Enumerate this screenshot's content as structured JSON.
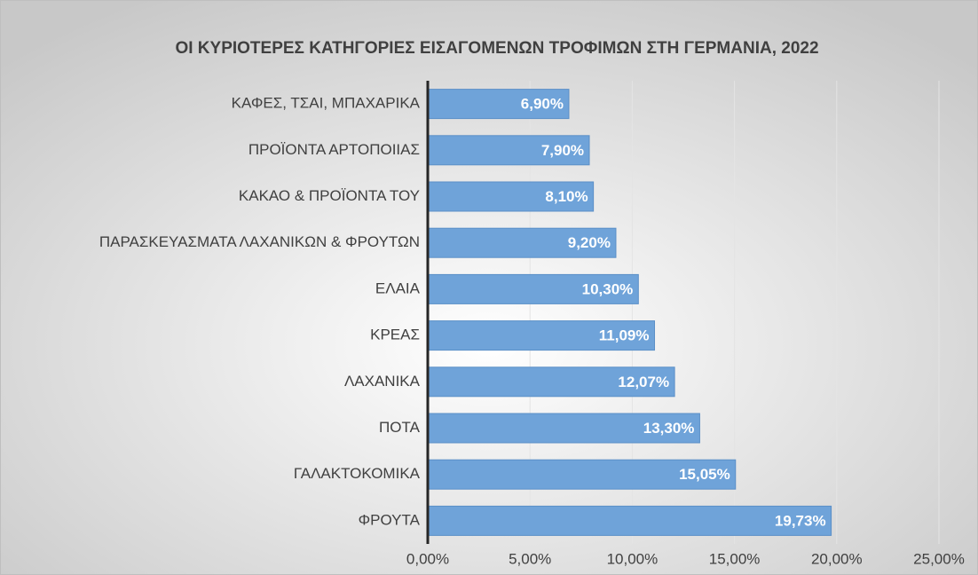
{
  "chart_data": {
    "type": "bar",
    "orientation": "horizontal",
    "title": "ΟΙ ΚΥΡΙΟΤΕΡΕΣ ΚΑΤΗΓΟΡΙΕΣ ΕΙΣΑΓΟΜΕΝΩΝ ΤΡΟΦΙΜΩΝ ΣΤΗ ΓΕΡΜΑΝΙΑ, 2022",
    "categories": [
      "ΚΑΦΕΣ, ΤΣΑΙ, ΜΠΑΧΑΡΙΚΑ",
      "ΠΡΟΪΟΝΤΑ ΑΡΤΟΠΟΙΙΑΣ",
      "ΚΑΚΑΟ & ΠΡΟΪΟΝΤΑ ΤΟΥ",
      "ΠΑΡΑΣΚΕΥΑΣΜΑΤΑ ΛΑΧΑΝΙΚΩΝ & ΦΡΟΥΤΩΝ",
      "ΕΛΑΙΑ",
      "ΚΡΕΑΣ",
      "ΛΑΧΑΝΙΚΑ",
      "ΠΟΤΑ",
      "ΓΑΛΑΚΤΟΚΟΜΙΚΑ",
      "ΦΡΟΥΤΑ"
    ],
    "values": [
      6.9,
      7.9,
      8.1,
      9.2,
      10.3,
      11.09,
      12.07,
      13.3,
      15.05,
      19.73
    ],
    "value_labels": [
      "6,90%",
      "7,90%",
      "8,10%",
      "9,20%",
      "10,30%",
      "11,09%",
      "12,07%",
      "13,30%",
      "15,05%",
      "19,73%"
    ],
    "color": "#6fa3d9",
    "xlim": [
      0,
      25
    ],
    "xticks": [
      {
        "value": 0,
        "label": "0,00%"
      },
      {
        "value": 5,
        "label": "5,00%"
      },
      {
        "value": 10,
        "label": "10,00%"
      },
      {
        "value": 15,
        "label": "15,00%"
      },
      {
        "value": 20,
        "label": "20,00%"
      },
      {
        "value": 25,
        "label": "25,00%"
      }
    ],
    "grid": true
  }
}
